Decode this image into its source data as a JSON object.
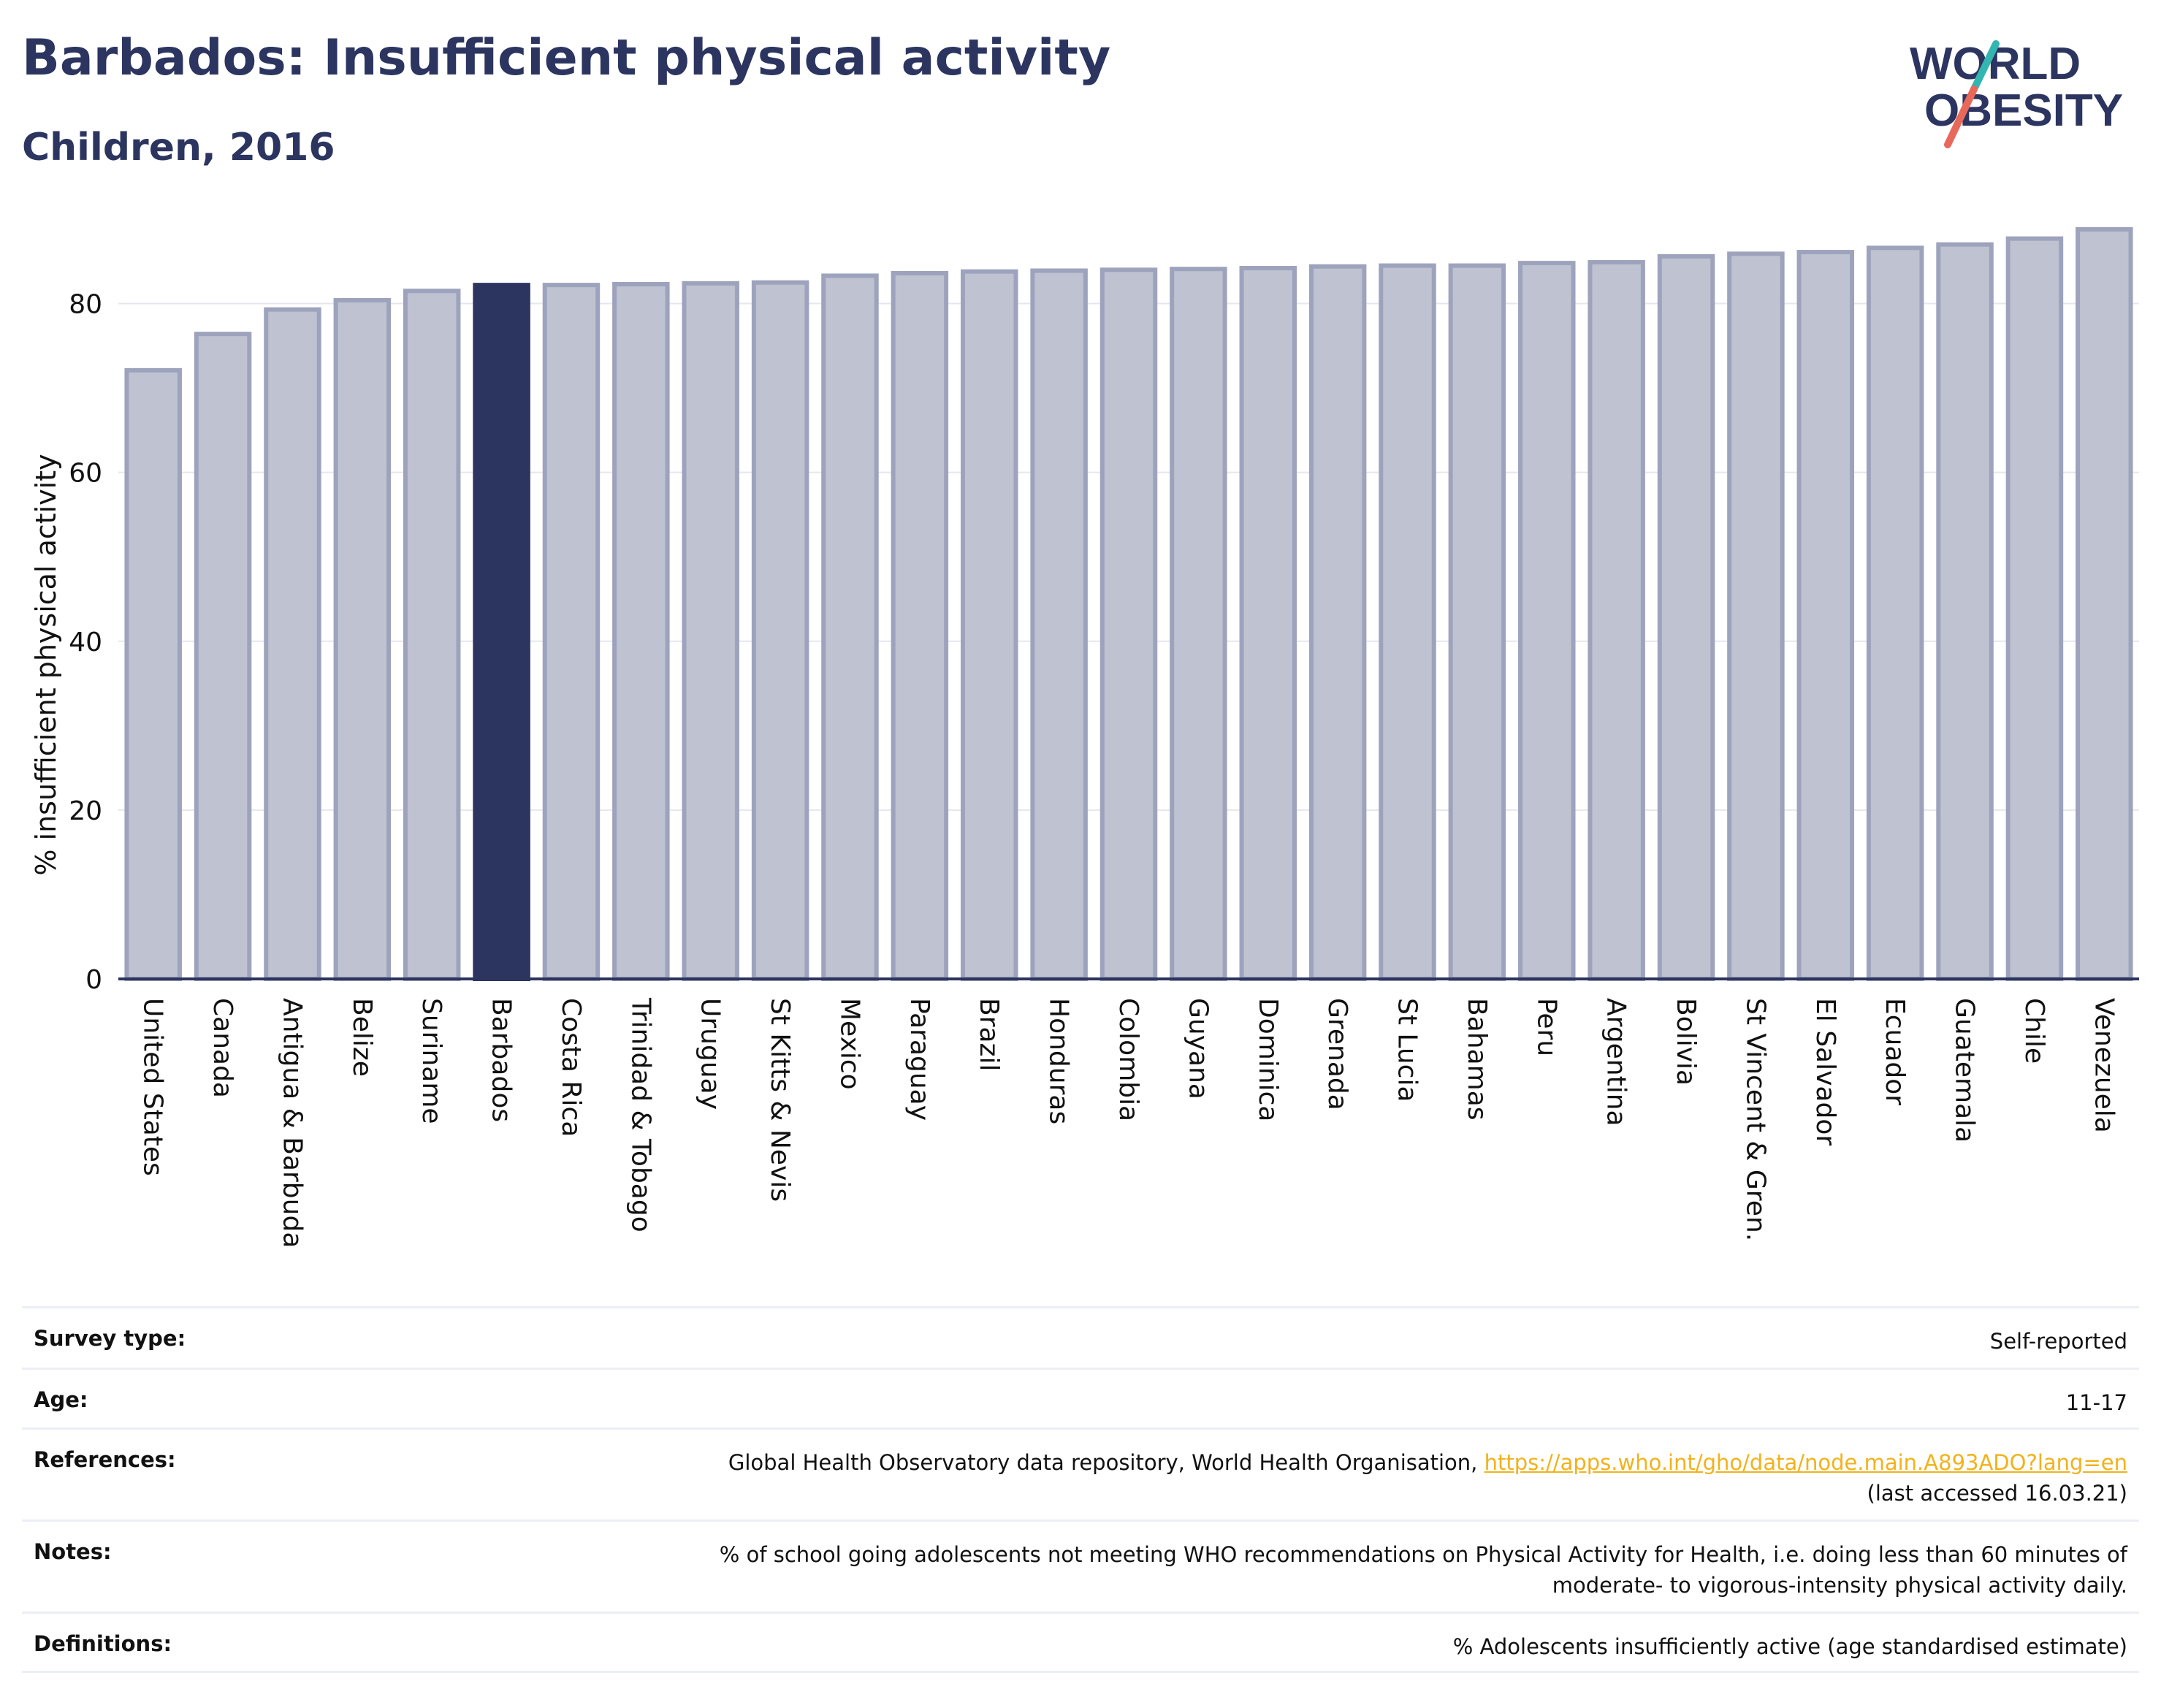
{
  "header": {
    "title": "Barbados: Insufficient physical activity",
    "subtitle": "Children, 2016"
  },
  "logo": {
    "line1": "WORLD",
    "line2": "OBESITY",
    "accent_teal": "#33b5b0",
    "accent_red": "#e8695a"
  },
  "chart_data": {
    "type": "bar",
    "ylabel": "% insufficient physical activity",
    "ylim": [
      0,
      90
    ],
    "yticks": [
      0,
      20,
      40,
      60,
      80
    ],
    "grid": true,
    "highlight": "Barbados",
    "colors": {
      "bar": "#bfc2d0",
      "bar_edge": "#9ea3bd",
      "highlight": "#2c3560"
    },
    "categories": [
      "United States",
      "Canada",
      "Antigua & Barbuda",
      "Belize",
      "Suriname",
      "Barbados",
      "Costa Rica",
      "Trinidad & Tobago",
      "Uruguay",
      "St Kitts & Nevis",
      "Mexico",
      "Paraguay",
      "Brazil",
      "Honduras",
      "Colombia",
      "Guyana",
      "Dominica",
      "Grenada",
      "St Lucia",
      "Bahamas",
      "Peru",
      "Argentina",
      "Bolivia",
      "St Vincent & Gren.",
      "El Salvador",
      "Ecuador",
      "Guatemala",
      "Chile",
      "Venezuela"
    ],
    "values": [
      72.1,
      76.4,
      79.3,
      80.4,
      81.5,
      82.2,
      82.2,
      82.3,
      82.4,
      82.5,
      83.3,
      83.6,
      83.8,
      83.9,
      84.0,
      84.1,
      84.2,
      84.4,
      84.5,
      84.5,
      84.8,
      84.9,
      85.6,
      85.9,
      86.1,
      86.6,
      87.0,
      87.7,
      88.8
    ]
  },
  "info": {
    "survey_type": {
      "label": "Survey type:",
      "value": "Self-reported"
    },
    "age": {
      "label": "Age:",
      "value": "11-17"
    },
    "references": {
      "label": "References:",
      "text": "Global Health Observatory data repository, World Health Organisation, ",
      "link": "https://apps.who.int/gho/data/node.main.A893ADO?lang=en",
      "accessed": "(last accessed 16.03.21)"
    },
    "notes": {
      "label": "Notes:",
      "line1": "% of school going adolescents not meeting WHO recommendations on Physical Activity for Health, i.e. doing less than 60 minutes of",
      "line2": "moderate- to vigorous-intensity physical activity daily."
    },
    "definitions": {
      "label": "Definitions:",
      "value": "% Adolescents insufficiently active (age standardised estimate)"
    }
  }
}
